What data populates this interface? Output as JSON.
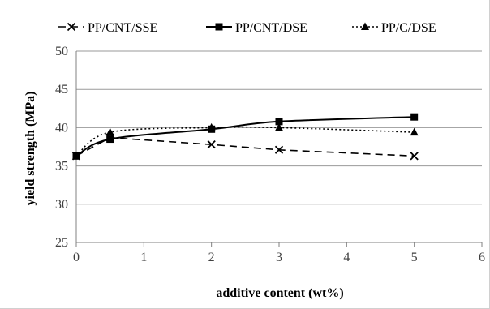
{
  "chart_data": {
    "type": "line",
    "title": "",
    "xlabel": "additive content (wt%)",
    "ylabel": "yield strength (MPa)",
    "xlim": [
      0,
      6
    ],
    "ylim": [
      25,
      50
    ],
    "xticks": [
      0,
      1,
      2,
      3,
      4,
      5,
      6
    ],
    "yticks": [
      25,
      30,
      35,
      40,
      45,
      50
    ],
    "grid": true,
    "legend_position": "top",
    "series": [
      {
        "name": "PP/CNT/SSE",
        "marker": "x",
        "line_style": "dashed",
        "smooth": false,
        "color": "#000000",
        "x": [
          0,
          0.5,
          2,
          3,
          5
        ],
        "y": [
          36.3,
          38.7,
          37.8,
          37.1,
          36.3
        ]
      },
      {
        "name": "PP/CNT/DSE",
        "marker": "square",
        "line_style": "solid",
        "smooth": true,
        "color": "#000000",
        "x": [
          0,
          0.5,
          2,
          3,
          5
        ],
        "y": [
          36.3,
          38.5,
          39.8,
          40.8,
          41.4
        ]
      },
      {
        "name": "PP/C/DSE",
        "marker": "triangle",
        "line_style": "dotted",
        "smooth": true,
        "color": "#000000",
        "x": [
          0,
          0.5,
          2,
          3,
          5
        ],
        "y": [
          36.3,
          39.4,
          40.0,
          40.0,
          39.4
        ]
      }
    ]
  }
}
